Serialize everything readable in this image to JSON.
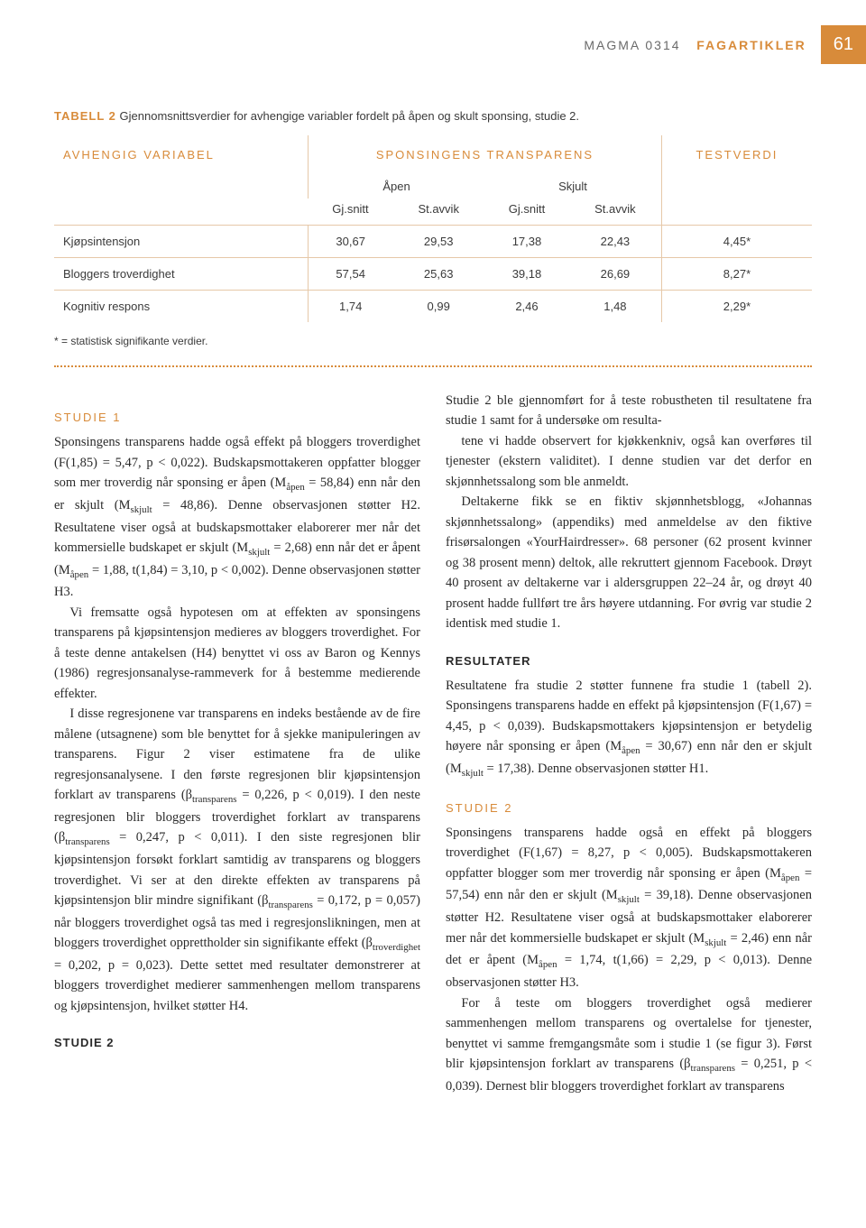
{
  "header": {
    "left": "MAGMA 0314",
    "highlight": "FAGARTIKLER",
    "page_number": "61"
  },
  "table": {
    "caption_label": "TABELL 2",
    "caption_text": "Gjennomsnittsverdier for avhengige variabler fordelt på åpen og skult sponsing, studie 2.",
    "header_main": {
      "left": "AVHENGIG VARIABEL",
      "center": "SPONSINGENS TRANSPARENS",
      "right": "TESTVERDI"
    },
    "header_groups": {
      "g1": "Åpen",
      "g2": "Skjult"
    },
    "header_sub": {
      "c1": "Gj.snitt",
      "c2": "St.avvik",
      "c3": "Gj.snitt",
      "c4": "St.avvik"
    },
    "rows": [
      {
        "label": "Kjøpsintensjon",
        "v1": "30,67",
        "v2": "29,53",
        "v3": "17,38",
        "v4": "22,43",
        "t": "4,45*"
      },
      {
        "label": "Bloggers troverdighet",
        "v1": "57,54",
        "v2": "25,63",
        "v3": "39,18",
        "v4": "26,69",
        "t": "8,27*"
      },
      {
        "label": "Kognitiv respons",
        "v1": "1,74",
        "v2": "0,99",
        "v3": "2,46",
        "v4": "1,48",
        "t": "2,29*"
      }
    ],
    "footnote": "* = statistisk signifikante verdier."
  },
  "columns": {
    "studie1_heading": "STUDIE 1",
    "studie1_p1": "Sponsingens transparens hadde også effekt på bloggers troverdighet (F(1,85) = 5,47, p < 0,022). Budskapsmottakeren oppfatter blogger som mer troverdig når sponsing er åpen (Måpen = 58,84) enn når den er skjult (Mskjult = 48,86). Denne observasjonen støtter H2. Resultatene viser også at budskapsmottaker elaborerer mer når det kommersielle budskapet er skjult (Mskjult = 2,68) enn når det er åpent (Måpen = 1,88, t(1,84) = 3,10, p < 0,002). Denne observasjonen støtter H3.",
    "studie1_p2": "Vi fremsatte også hypotesen om at effekten av sponsingens transparens på kjøpsintensjon medieres av bloggers troverdighet. For å teste denne antakelsen (H4) benyttet vi oss av Baron og Kennys (1986) regresjonsanalyse-rammeverk for å bestemme medierende effekter.",
    "studie1_p3": "I disse regresjonene var transparens en indeks bestående av de fire målene (utsagnene) som ble benyttet for å sjekke manipuleringen av transparens. Figur 2 viser estimatene fra de ulike regresjonsanalysene. I den første regresjonen blir kjøpsintensjon forklart av transparens (βtransparens = 0,226, p < 0,019). I den neste regresjonen blir bloggers troverdighet forklart av transparens (βtransparens = 0,247, p < 0,011). I den siste regresjonen blir kjøpsintensjon forsøkt forklart samtidig av transparens og bloggers troverdighet. Vi ser at den direkte effekten av transparens på kjøpsintensjon blir mindre signifikant (βtransparens = 0,172, p = 0,057) når bloggers troverdighet også tas med i regresjonslikningen, men at bloggers troverdighet opprettholder sin signifikante effekt (βtroverdighet = 0,202, p = 0,023). Dette settet med resultater demonstrerer at bloggers troverdighet medierer sammenhengen mellom transparens og kjøpsintensjon, hvilket støtter H4.",
    "studie2_heading": "STUDIE 2",
    "studie2_p1": "Studie 2 ble gjennomført for å teste robustheten til resultatene fra studie 1 samt for å undersøke om resulta-",
    "right_p1": "tene vi hadde observert for kjøkkenkniv, også kan overføres til tjenester (ekstern validitet). I denne studien var det derfor en skjønnhetssalong som ble anmeldt.",
    "right_p2": "Deltakerne fikk se en fiktiv skjønnhetsblogg, «Johannas skjønnhetssalong» (appendiks) med anmeldelse av den fiktive frisørsalongen «YourHairdresser». 68 personer (62 prosent kvinner og 38 prosent menn) deltok, alle rekruttert gjennom Facebook. Drøyt 40 prosent av deltakerne var i aldersgruppen 22–24 år, og drøyt 40 prosent hadde fullført tre års høyere utdanning. For øvrig var studie 2 identisk med studie 1.",
    "resultater_heading": "RESULTATER",
    "resultater_p1": "Resultatene fra studie 2 støtter funnene fra studie 1 (tabell 2). Sponsingens transparens hadde en effekt på kjøpsintensjon (F(1,67) = 4,45, p < 0,039). Budskapsmottakers kjøpsintensjon er betydelig høyere når sponsing er åpen (Måpen = 30,67) enn når den er skjult (Mskjult = 17,38). Denne observasjonen støtter H1.",
    "studie2b_heading": "STUDIE 2",
    "studie2b_p1": "Sponsingens transparens hadde også en effekt på bloggers troverdighet (F(1,67) = 8,27, p < 0,005). Budskapsmottakeren oppfatter blogger som mer troverdig når sponsing er åpen (Måpen = 57,54) enn når den er skjult (Mskjult = 39,18). Denne observasjonen støtter H2. Resultatene viser også at budskapsmottaker elaborerer mer når det kommersielle budskapet er skjult (Mskjult = 2,46) enn når det er åpent (Måpen = 1,74, t(1,66) = 2,29, p < 0,013). Denne observasjonen støtter H3.",
    "studie2b_p2": "For å teste om bloggers troverdighet også medierer sammenhengen mellom transparens og overtalelse for tjenester, benyttet vi samme fremgangsmåte som i studie 1 (se figur 3). Først blir kjøpsintensjon forklart av transparens (βtransparens = 0,251, p < 0,039). Dernest blir bloggers troverdighet forklart av transparens"
  }
}
